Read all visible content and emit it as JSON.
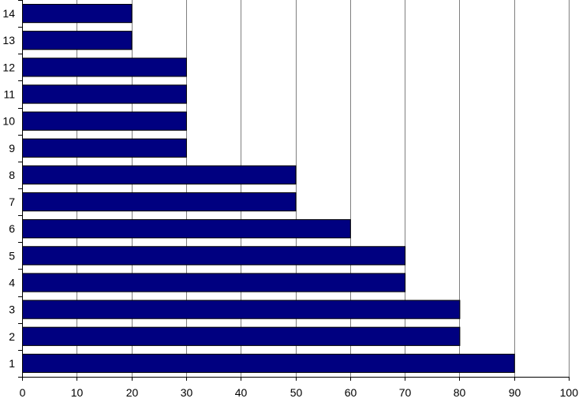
{
  "chart_data": {
    "type": "bar",
    "orientation": "horizontal",
    "categories": [
      "1",
      "2",
      "3",
      "4",
      "5",
      "6",
      "7",
      "8",
      "9",
      "10",
      "11",
      "12",
      "13",
      "14"
    ],
    "values": [
      90,
      80,
      80,
      70,
      70,
      60,
      50,
      50,
      30,
      30,
      30,
      30,
      20,
      20
    ],
    "title": "",
    "xlabel": "",
    "ylabel": "",
    "xlim": [
      0,
      100
    ],
    "x_ticks": [
      "0",
      "10",
      "20",
      "30",
      "40",
      "50",
      "60",
      "70",
      "80",
      "90",
      "100"
    ],
    "grid": "vertical",
    "legend": "none",
    "colors": {
      "bar_fill": "#000080",
      "bar_stroke": "#000000",
      "grid": "#808080",
      "axis": "#000000"
    }
  }
}
